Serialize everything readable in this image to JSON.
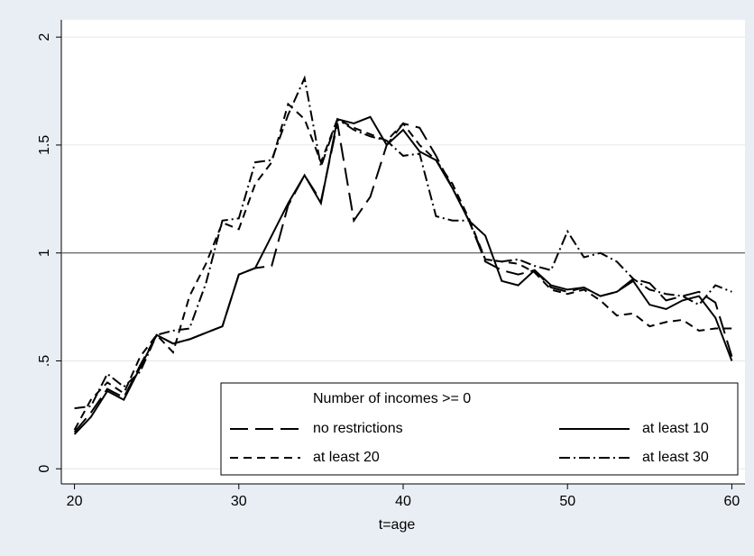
{
  "chart_data": {
    "type": "line",
    "x_label": "t=age",
    "x": [
      20,
      21,
      22,
      23,
      24,
      25,
      26,
      27,
      28,
      29,
      30,
      31,
      32,
      33,
      34,
      35,
      36,
      37,
      38,
      39,
      40,
      41,
      42,
      43,
      44,
      45,
      46,
      47,
      48,
      49,
      50,
      51,
      52,
      53,
      54,
      55,
      56,
      57,
      58,
      59,
      60
    ],
    "xlim": [
      19.2,
      60.8
    ],
    "xticks": [
      20,
      30,
      40,
      50,
      60
    ],
    "ylim": [
      -0.07,
      2.08
    ],
    "yticks": [
      0,
      {
        "value": 0.5,
        "label": ".5"
      },
      1,
      1.5,
      2
    ],
    "grid": true,
    "yline": 1,
    "legend_title": "Number of incomes >= 0",
    "legend_position": "bottom-right",
    "series": [
      {
        "name": "no restrictions",
        "color": "#000000",
        "dash": "long-dash",
        "values": [
          0.17,
          0.26,
          0.37,
          0.33,
          0.48,
          0.62,
          0.58,
          0.6,
          0.63,
          0.66,
          0.9,
          0.93,
          0.94,
          1.22,
          1.36,
          1.24,
          1.6,
          1.15,
          1.26,
          1.5,
          1.6,
          1.58,
          1.45,
          1.3,
          1.15,
          0.96,
          0.92,
          0.9,
          0.92,
          0.84,
          0.82,
          0.84,
          0.8,
          0.82,
          0.88,
          0.86,
          0.78,
          0.8,
          0.82,
          0.77,
          0.52
        ]
      },
      {
        "name": "at least 10",
        "color": "#000000",
        "dash": "solid",
        "values": [
          0.16,
          0.24,
          0.36,
          0.32,
          0.47,
          0.62,
          0.58,
          0.6,
          0.63,
          0.66,
          0.9,
          0.93,
          1.08,
          1.23,
          1.36,
          1.23,
          1.62,
          1.6,
          1.63,
          1.5,
          1.57,
          1.47,
          1.43,
          1.3,
          1.15,
          1.08,
          0.87,
          0.85,
          0.92,
          0.85,
          0.83,
          0.84,
          0.8,
          0.82,
          0.87,
          0.76,
          0.74,
          0.78,
          0.8,
          0.7,
          0.5
        ]
      },
      {
        "name": "at least 20",
        "color": "#000000",
        "dash": "short-dash",
        "values": [
          0.18,
          0.32,
          0.4,
          0.35,
          0.52,
          0.62,
          0.54,
          0.8,
          0.95,
          1.14,
          1.11,
          1.32,
          1.42,
          1.69,
          1.62,
          1.42,
          1.62,
          1.58,
          1.55,
          1.52,
          1.6,
          1.5,
          1.43,
          1.32,
          1.16,
          0.97,
          0.96,
          0.95,
          0.91,
          0.83,
          0.81,
          0.83,
          0.78,
          0.71,
          0.72,
          0.66,
          0.68,
          0.69,
          0.64,
          0.65,
          0.65
        ]
      },
      {
        "name": "at least 30",
        "color": "#000000",
        "dash": "dash-dot",
        "values": [
          0.28,
          0.29,
          0.44,
          0.38,
          0.45,
          0.62,
          0.64,
          0.65,
          0.86,
          1.15,
          1.16,
          1.42,
          1.43,
          1.64,
          1.81,
          1.4,
          1.62,
          1.57,
          1.54,
          1.52,
          1.45,
          1.46,
          1.17,
          1.15,
          1.15,
          0.97,
          0.96,
          0.97,
          0.94,
          0.92,
          1.1,
          0.98,
          1.0,
          0.96,
          0.88,
          0.83,
          0.81,
          0.8,
          0.76,
          0.85,
          0.82
        ]
      }
    ]
  }
}
